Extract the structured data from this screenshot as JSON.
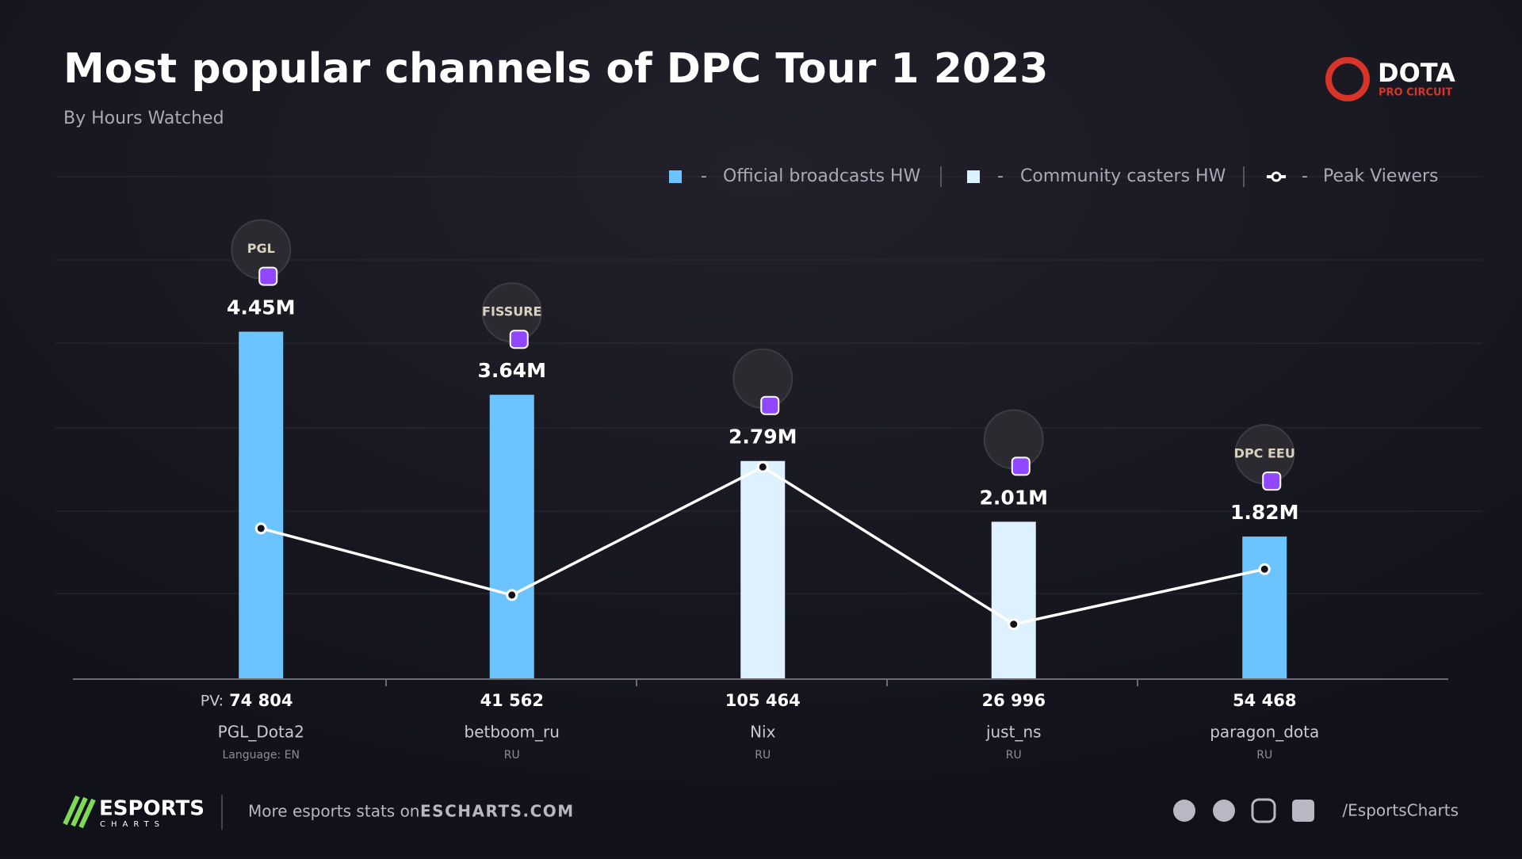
{
  "chart_data": {
    "type": "bar",
    "title": "Most popular channels of DPC Tour 1 2023",
    "subtitle": "By Hours Watched",
    "categories": [
      "PGL_Dota2",
      "betboom_ru",
      "Nix",
      "just_ns",
      "paragon_dota"
    ],
    "languages": [
      "Language: EN",
      "RU",
      "RU",
      "RU",
      "RU"
    ],
    "avatar_labels": [
      "PGL",
      "FISSURE",
      null,
      null,
      "DPC EEU"
    ],
    "pv_prefix": "PV:",
    "legend_dash": "-",
    "series": [
      {
        "name": "Official broadcasts HW",
        "color": "#6cc4ff",
        "values": [
          4.45,
          3.64,
          null,
          null,
          1.82
        ],
        "value_labels": [
          "4.45M",
          "3.64M",
          null,
          null,
          "1.82M"
        ]
      },
      {
        "name": "Community casters HW",
        "color": "#def1ff",
        "values": [
          null,
          null,
          2.79,
          2.01,
          null
        ],
        "value_labels": [
          null,
          null,
          "2.79M",
          "2.01M",
          null
        ]
      },
      {
        "name": "Peak Viewers",
        "type": "line",
        "color": "#ffffff",
        "values": [
          74804,
          41562,
          105464,
          26996,
          54468
        ],
        "value_labels": [
          "74 804",
          "41 562",
          "105 464",
          "26 996",
          "54 468"
        ]
      }
    ]
  },
  "brand": {
    "name": "DOTA",
    "sub": "PRO CIRCUIT"
  },
  "footer": {
    "logo": "ESPORTS",
    "logo_sub": "CHARTS",
    "text": "More esports stats on",
    "site": "ESCHARTS.COM",
    "handle": "/EsportsCharts"
  }
}
